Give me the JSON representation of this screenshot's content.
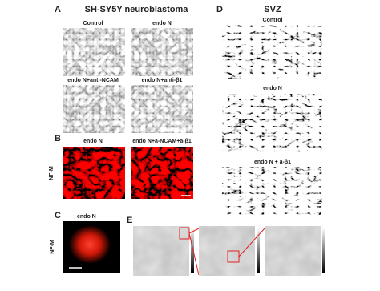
{
  "panels": [
    {
      "letter": "A",
      "title": "SH-SY5Y neuroblastoma",
      "labels": [
        "Control",
        "endo N",
        "endo N+anti-NCAM",
        "endo N+anti-β1"
      ]
    },
    {
      "letter": "B",
      "labels": [
        "endo N",
        "endo N+a-NCAM+a-β1"
      ],
      "stain": "NF-M"
    },
    {
      "letter": "C",
      "labels": [
        "endo N"
      ],
      "stain": "NF-M"
    },
    {
      "letter": "D",
      "title": "SVZ",
      "labels": [
        "Control",
        "endo N",
        "endo N + a-β1"
      ]
    },
    {
      "letter": "E"
    }
  ]
}
